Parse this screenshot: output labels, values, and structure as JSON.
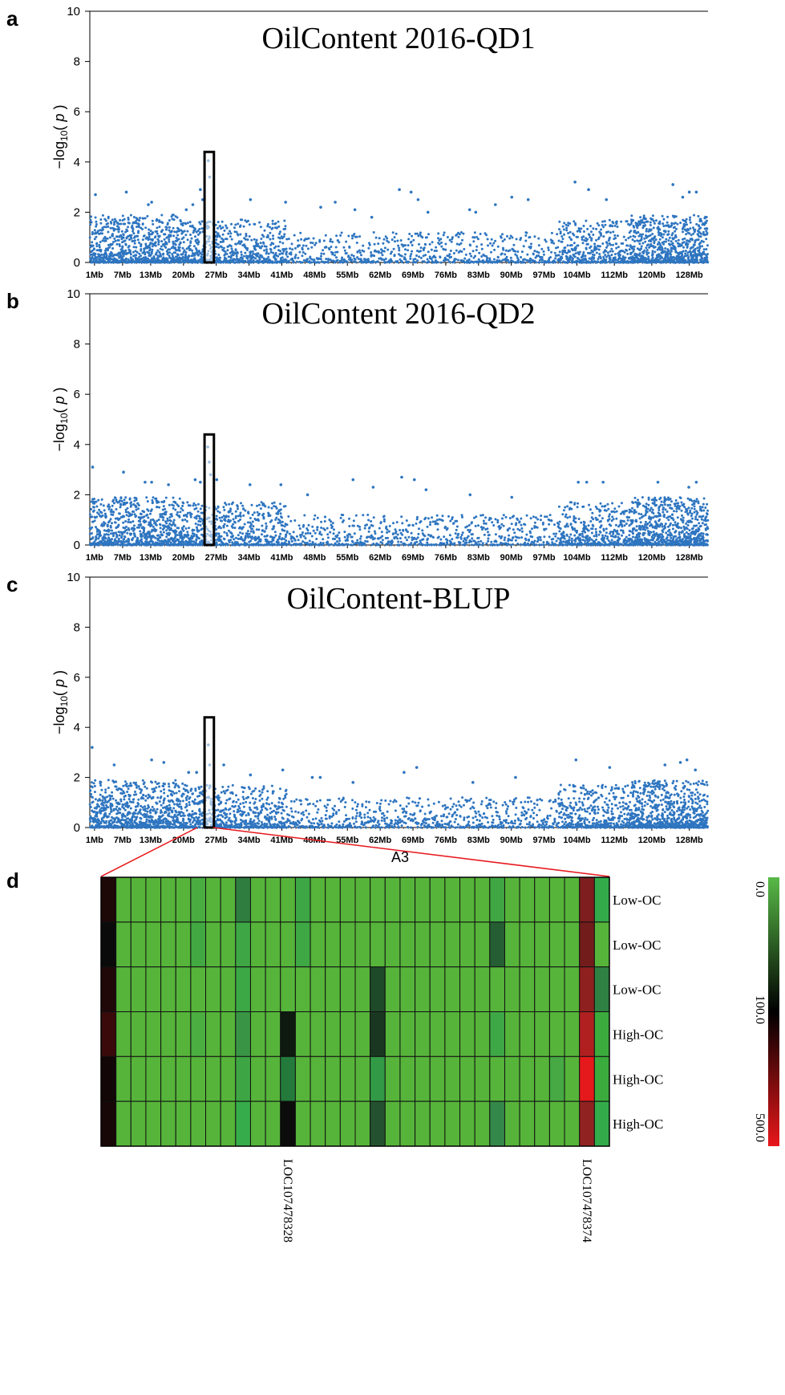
{
  "chart_data": [
    {
      "type": "scatter",
      "panel": "a",
      "title": "OilContent 2016-QD1",
      "ylabel": "−log10(p)",
      "xlabel": "",
      "ylim": [
        0,
        10
      ],
      "yticks": [
        "0",
        "2",
        "4",
        "6",
        "8",
        "10"
      ],
      "xtick_labels": [
        "1Mb",
        "7Mb",
        "13Mb",
        "20Mb",
        "27Mb",
        "34Mb",
        "41Mb",
        "48Mb",
        "55Mb",
        "62Mb",
        "69Mb",
        "76Mb",
        "83Mb",
        "90Mb",
        "97Mb",
        "104Mb",
        "112Mb",
        "120Mb",
        "128Mb"
      ],
      "color": "#2E75C0",
      "highlight_box": {
        "x_range_mb": [
          24.5,
          26.5
        ],
        "y_range": [
          0,
          4.4
        ]
      },
      "series": [
        {
          "x": [
            1.2,
            7.8,
            12.5,
            13.2,
            20.6,
            22.0,
            23.6,
            24.1,
            25.3,
            25.6,
            34.3,
            41.8,
            49.3,
            52.4,
            56.6,
            60.2,
            66.1,
            68.6,
            70.1,
            72.2,
            81.1,
            82.4,
            86.6,
            90.1,
            93.6,
            103.6,
            106.5,
            110.3,
            124.5,
            126.6,
            128.0,
            129.5
          ],
          "y": [
            2.7,
            2.8,
            2.3,
            2.4,
            2.1,
            2.3,
            2.9,
            2.5,
            4.05,
            3.4,
            2.5,
            2.4,
            2.2,
            2.4,
            2.1,
            1.8,
            2.9,
            2.8,
            2.5,
            2.0,
            2.1,
            2.0,
            2.3,
            2.6,
            2.5,
            3.2,
            2.9,
            2.5,
            3.1,
            2.6,
            2.8,
            2.8
          ]
        }
      ]
    },
    {
      "type": "scatter",
      "panel": "b",
      "title": "OilContent 2016-QD2",
      "ylabel": "−log10(p)",
      "xlabel": "",
      "ylim": [
        0,
        10
      ],
      "yticks": [
        "0",
        "2",
        "4",
        "6",
        "8",
        "10"
      ],
      "xtick_labels": [
        "1Mb",
        "7Mb",
        "13Mb",
        "20Mb",
        "27Mb",
        "34Mb",
        "41Mb",
        "48Mb",
        "55Mb",
        "62Mb",
        "69Mb",
        "76Mb",
        "83Mb",
        "90Mb",
        "97Mb",
        "104Mb",
        "112Mb",
        "120Mb",
        "128Mb"
      ],
      "color": "#2E75C0",
      "highlight_box": {
        "x_range_mb": [
          24.5,
          26.5
        ],
        "y_range": [
          0,
          4.4
        ]
      },
      "series": [
        {
          "x": [
            0.6,
            7.2,
            11.8,
            13.2,
            16.8,
            22.5,
            23.6,
            25.2,
            25.5,
            25.8,
            27.1,
            34.2,
            40.8,
            46.5,
            56.2,
            60.5,
            66.6,
            69.3,
            71.8,
            81.2,
            90.1,
            104.3,
            106.1,
            109.6,
            121.3,
            127.9,
            129.5
          ],
          "y": [
            3.1,
            2.9,
            2.5,
            2.5,
            2.4,
            2.6,
            2.5,
            3.9,
            3.3,
            2.8,
            2.6,
            2.4,
            2.4,
            2.0,
            2.6,
            2.3,
            2.7,
            2.6,
            2.2,
            2.0,
            1.9,
            2.5,
            2.5,
            2.5,
            2.5,
            2.3,
            2.5
          ]
        }
      ]
    },
    {
      "type": "scatter",
      "panel": "c",
      "title": "OilContent-BLUP",
      "ylabel": "−log10(p)",
      "xlabel": "A3",
      "ylim": [
        0,
        10
      ],
      "yticks": [
        "0",
        "2",
        "4",
        "6",
        "8",
        "10"
      ],
      "xtick_labels": [
        "1Mb",
        "7Mb",
        "13Mb",
        "20Mb",
        "27Mb",
        "34Mb",
        "41Mb",
        "48Mb",
        "55Mb",
        "62Mb",
        "69Mb",
        "76Mb",
        "83Mb",
        "90Mb",
        "97Mb",
        "104Mb",
        "112Mb",
        "120Mb",
        "128Mb"
      ],
      "color": "#2E75C0",
      "highlight_box": {
        "x_range_mb": [
          24.5,
          26.5
        ],
        "y_range": [
          0,
          4.4
        ]
      },
      "series": [
        {
          "x": [
            0.5,
            5.2,
            13.2,
            15.8,
            21.1,
            22.8,
            25.3,
            25.6,
            28.6,
            34.3,
            41.2,
            47.5,
            49.2,
            56.2,
            67.1,
            69.8,
            81.8,
            90.9,
            103.8,
            111.0,
            122.8,
            126.1,
            127.5,
            129.3
          ],
          "y": [
            3.2,
            2.5,
            2.7,
            2.6,
            2.2,
            2.2,
            3.3,
            2.5,
            2.5,
            2.1,
            2.3,
            2.0,
            2.0,
            1.8,
            2.2,
            2.4,
            1.8,
            2.0,
            2.7,
            2.4,
            2.5,
            2.6,
            2.7,
            2.3
          ]
        }
      ]
    },
    {
      "type": "heatmap",
      "panel": "d",
      "title": "",
      "rows": [
        "Low-OC",
        "Low-OC",
        "Low-OC",
        "High-OC",
        "High-OC",
        "High-OC"
      ],
      "column_labels": [
        {
          "col": 12,
          "label": "LOC107478328"
        },
        {
          "col": 32,
          "label": "LOC107478374"
        }
      ],
      "colorbar": {
        "min_label": "0.0",
        "mid_label": "100.0",
        "max_label": "500.0",
        "colors": [
          "#58B947",
          "#000000",
          "#E8171B"
        ]
      },
      "n_cols": 34,
      "cell_colors": [
        [
          "#1d0707",
          "#56b43a",
          "#56b43a",
          "#56b43a",
          "#56b43a",
          "#56b43a",
          "#4aad41",
          "#56b43a",
          "#56b43a",
          "#2f7e40",
          "#56b43a",
          "#56b43a",
          "#56b43a",
          "#3da746",
          "#56b43a",
          "#56b43a",
          "#56b43a",
          "#56b43a",
          "#56b43a",
          "#56b43a",
          "#56b43a",
          "#56b43a",
          "#56b43a",
          "#56b43a",
          "#56b43a",
          "#56b43a",
          "#3fa643",
          "#56b43a",
          "#56b43a",
          "#56b43a",
          "#56b43a",
          "#56b43a",
          "#7e1e1e",
          "#33ab4a"
        ],
        [
          "#0a0a0a",
          "#56b43a",
          "#56b43a",
          "#56b43a",
          "#56b43a",
          "#56b43a",
          "#42a942",
          "#56b43a",
          "#56b43a",
          "#3ea644",
          "#56b43a",
          "#56b43a",
          "#56b43a",
          "#3ea844",
          "#56b43a",
          "#56b43a",
          "#56b43a",
          "#56b43a",
          "#56b43a",
          "#56b43a",
          "#56b43a",
          "#56b43a",
          "#56b43a",
          "#56b43a",
          "#56b43a",
          "#56b43a",
          "#265e34",
          "#56b43a",
          "#56b43a",
          "#56b43a",
          "#56b43a",
          "#56b43a",
          "#731c1c",
          "#56b43a"
        ],
        [
          "#200808",
          "#56b43a",
          "#56b43a",
          "#56b43a",
          "#56b43a",
          "#56b43a",
          "#56b43a",
          "#56b43a",
          "#56b43a",
          "#3ca745",
          "#56b43a",
          "#56b43a",
          "#56b43a",
          "#56b43a",
          "#56b43a",
          "#56b43a",
          "#56b43a",
          "#56b43a",
          "#1f4a2a",
          "#56b43a",
          "#56b43a",
          "#56b43a",
          "#56b43a",
          "#56b43a",
          "#56b43a",
          "#56b43a",
          "#56b43a",
          "#56b43a",
          "#56b43a",
          "#56b43a",
          "#56b43a",
          "#56b43a",
          "#8e2020",
          "#2f8143"
        ],
        [
          "#3a0a0a",
          "#56b43a",
          "#56b43a",
          "#56b43a",
          "#56b43a",
          "#56b43a",
          "#4aae40",
          "#56b43a",
          "#56b43a",
          "#399545",
          "#56b43a",
          "#56b43a",
          "#0e1a0f",
          "#56b43a",
          "#56b43a",
          "#56b43a",
          "#56b43a",
          "#56b43a",
          "#1a3821",
          "#56b43a",
          "#56b43a",
          "#56b43a",
          "#56b43a",
          "#56b43a",
          "#56b43a",
          "#56b43a",
          "#3ea846",
          "#56b43a",
          "#56b43a",
          "#56b43a",
          "#56b43a",
          "#56b43a",
          "#b02020",
          "#3cab3d"
        ],
        [
          "#120606",
          "#56b43a",
          "#56b43a",
          "#56b43a",
          "#56b43a",
          "#56b43a",
          "#56b43a",
          "#56b43a",
          "#56b43a",
          "#3ea544",
          "#56b43a",
          "#56b43a",
          "#247a3b",
          "#56b43a",
          "#56b43a",
          "#56b43a",
          "#56b43a",
          "#56b43a",
          "#329a46",
          "#56b43a",
          "#56b43a",
          "#56b43a",
          "#56b43a",
          "#56b43a",
          "#56b43a",
          "#56b43a",
          "#56b43a",
          "#56b43a",
          "#56b43a",
          "#56b43a",
          "#46a944",
          "#56b43a",
          "#e5191b",
          "#3cab3d"
        ],
        [
          "#170707",
          "#56b43a",
          "#56b43a",
          "#56b43a",
          "#56b43a",
          "#56b43a",
          "#56b43a",
          "#56b43a",
          "#56b43a",
          "#36ac4a",
          "#56b43a",
          "#56b43a",
          "#0c0c0c",
          "#56b43a",
          "#56b43a",
          "#56b43a",
          "#56b43a",
          "#56b43a",
          "#245230",
          "#56b43a",
          "#56b43a",
          "#56b43a",
          "#56b43a",
          "#56b43a",
          "#56b43a",
          "#56b43a",
          "#34894a",
          "#56b43a",
          "#56b43a",
          "#56b43a",
          "#56b43a",
          "#56b43a",
          "#912222",
          "#33ab4a"
        ]
      ]
    }
  ],
  "panel_letters": [
    "a",
    "b",
    "c",
    "d"
  ]
}
